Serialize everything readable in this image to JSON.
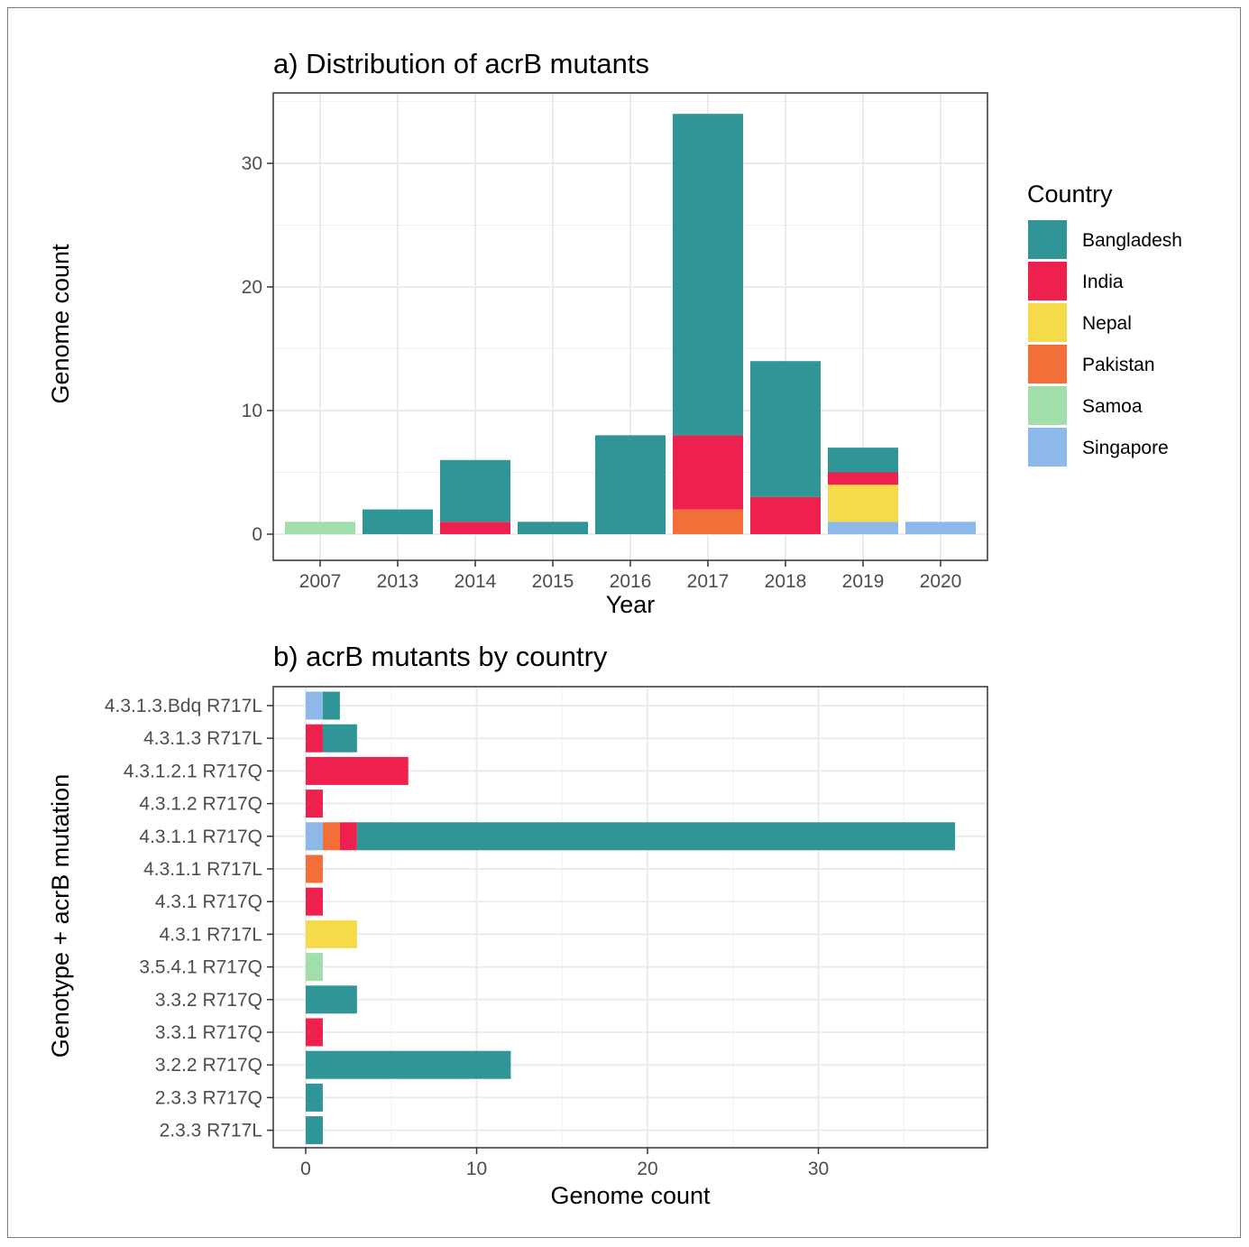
{
  "colors": {
    "Bangladesh": "#2f9596",
    "India": "#ee204d",
    "Nepal": "#f5da4a",
    "Pakistan": "#f26f3a",
    "Samoa": "#a0dfac",
    "Singapore": "#8cb8ea"
  },
  "legend": {
    "title": "Country",
    "items": [
      "Bangladesh",
      "India",
      "Nepal",
      "Pakistan",
      "Samoa",
      "Singapore"
    ]
  },
  "chart_data": [
    {
      "type": "bar",
      "orientation": "vertical",
      "stacked": true,
      "title": "a) Distribution of acrB mutants",
      "xlabel": "Year",
      "ylabel": "Genome count",
      "ylim": [
        0,
        35
      ],
      "yticks": [
        0,
        10,
        20,
        30
      ],
      "grid": true,
      "legend_position": "right",
      "categories": [
        "2007",
        "2013",
        "2014",
        "2015",
        "2016",
        "2017",
        "2018",
        "2019",
        "2020"
      ],
      "series": [
        {
          "name": "Singapore",
          "values": [
            0,
            0,
            0,
            0,
            0,
            0,
            0,
            1,
            1
          ]
        },
        {
          "name": "Samoa",
          "values": [
            1,
            0,
            0,
            0,
            0,
            0,
            0,
            0,
            0
          ]
        },
        {
          "name": "Pakistan",
          "values": [
            0,
            0,
            0,
            0,
            0,
            2,
            0,
            0,
            0
          ]
        },
        {
          "name": "Nepal",
          "values": [
            0,
            0,
            0,
            0,
            0,
            0,
            0,
            3,
            0
          ]
        },
        {
          "name": "India",
          "values": [
            0,
            0,
            1,
            0,
            0,
            6,
            3,
            1,
            0
          ]
        },
        {
          "name": "Bangladesh",
          "values": [
            0,
            2,
            5,
            1,
            8,
            26,
            11,
            2,
            0
          ]
        }
      ]
    },
    {
      "type": "bar",
      "orientation": "horizontal",
      "stacked": true,
      "title": "b) acrB mutants by country",
      "xlabel": "Genome count",
      "ylabel": "Genotype + acrB mutation",
      "xlim": [
        -2,
        40
      ],
      "xticks": [
        0,
        10,
        20,
        30
      ],
      "grid": true,
      "categories": [
        "4.3.1.3.Bdq R717L",
        "4.3.1.3 R717L",
        "4.3.1.2.1 R717Q",
        "4.3.1.2 R717Q",
        "4.3.1.1 R717Q",
        "4.3.1.1 R717L",
        "4.3.1 R717Q",
        "4.3.1 R717L",
        "3.5.4.1 R717Q",
        "3.3.2 R717Q",
        "3.3.1 R717Q",
        "3.2.2 R717Q",
        "2.3.3 R717Q",
        "2.3.3 R717L"
      ],
      "series": [
        {
          "name": "Singapore",
          "values": [
            1,
            0,
            0,
            0,
            1,
            0,
            0,
            0,
            0,
            0,
            0,
            0,
            0,
            0
          ]
        },
        {
          "name": "Samoa",
          "values": [
            0,
            0,
            0,
            0,
            0,
            0,
            0,
            0,
            1,
            0,
            0,
            0,
            0,
            0
          ]
        },
        {
          "name": "Pakistan",
          "values": [
            0,
            0,
            0,
            0,
            1,
            1,
            0,
            0,
            0,
            0,
            0,
            0,
            0,
            0
          ]
        },
        {
          "name": "Nepal",
          "values": [
            0,
            0,
            0,
            0,
            0,
            0,
            0,
            3,
            0,
            0,
            0,
            0,
            0,
            0
          ]
        },
        {
          "name": "India",
          "values": [
            0,
            1,
            6,
            1,
            1,
            0,
            1,
            0,
            0,
            0,
            1,
            0,
            0,
            0
          ]
        },
        {
          "name": "Bangladesh",
          "values": [
            1,
            2,
            0,
            0,
            35,
            0,
            0,
            0,
            0,
            3,
            0,
            12,
            1,
            1
          ]
        }
      ]
    }
  ]
}
